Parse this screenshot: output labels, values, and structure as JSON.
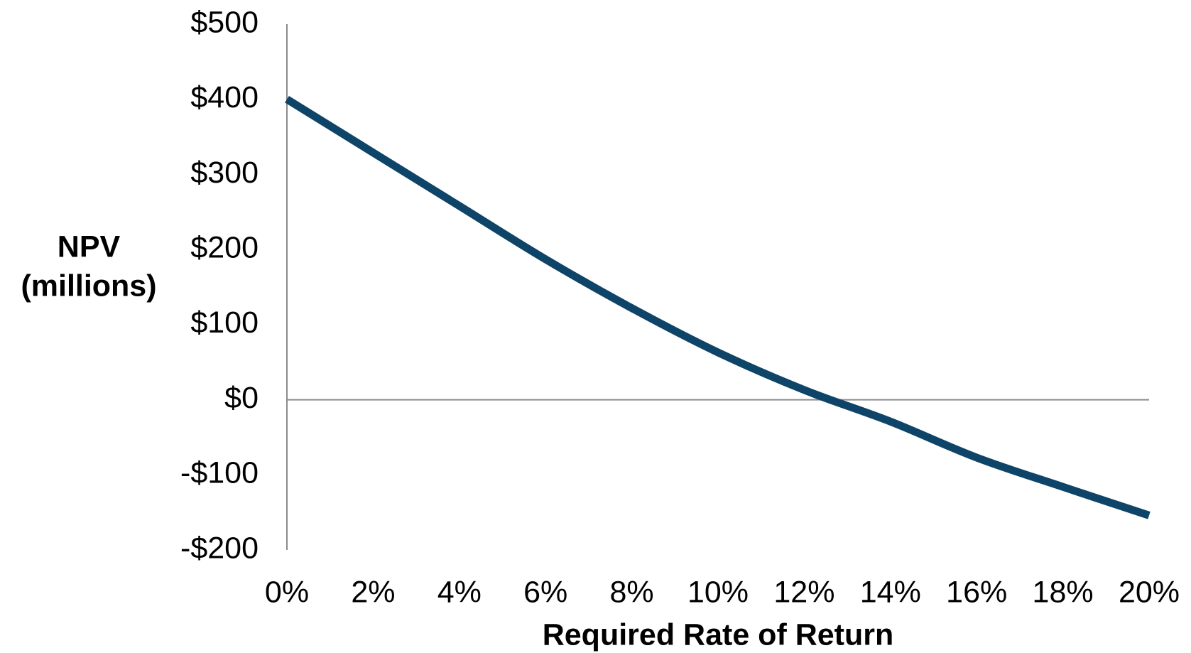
{
  "chart_data": {
    "type": "line",
    "xlabel": "Required Rate of Return",
    "ylabel": [
      "NPV",
      "(millions)"
    ],
    "x": [
      0,
      2,
      4,
      6,
      8,
      10,
      12,
      14,
      16,
      18,
      20
    ],
    "series": [
      {
        "color": "#0e4468",
        "values": [
          400,
          329,
          258,
          187,
          122,
          63,
          13,
          -29,
          -77,
          -116,
          -154
        ]
      }
    ],
    "xlim": [
      0,
      20
    ],
    "xticks": [
      {
        "value": 0,
        "label": "0%"
      },
      {
        "value": 2,
        "label": "2%"
      },
      {
        "value": 4,
        "label": "4%"
      },
      {
        "value": 6,
        "label": "6%"
      },
      {
        "value": 8,
        "label": "8%"
      },
      {
        "value": 10,
        "label": "10%"
      },
      {
        "value": 12,
        "label": "12%"
      },
      {
        "value": 14,
        "label": "14%"
      },
      {
        "value": 16,
        "label": "16%"
      },
      {
        "value": 18,
        "label": "18%"
      },
      {
        "value": 20,
        "label": "20%"
      }
    ],
    "ylim": [
      -200,
      500
    ],
    "yticks": [
      {
        "value": 500,
        "label": "$500"
      },
      {
        "value": 400,
        "label": "$400"
      },
      {
        "value": 300,
        "label": "$300"
      },
      {
        "value": 200,
        "label": "$200"
      },
      {
        "value": 100,
        "label": "$100"
      },
      {
        "value": 0,
        "label": "$0"
      },
      {
        "value": -100,
        "label": "-$100"
      },
      {
        "value": -200,
        "label": "-$200"
      }
    ],
    "grid": false
  }
}
